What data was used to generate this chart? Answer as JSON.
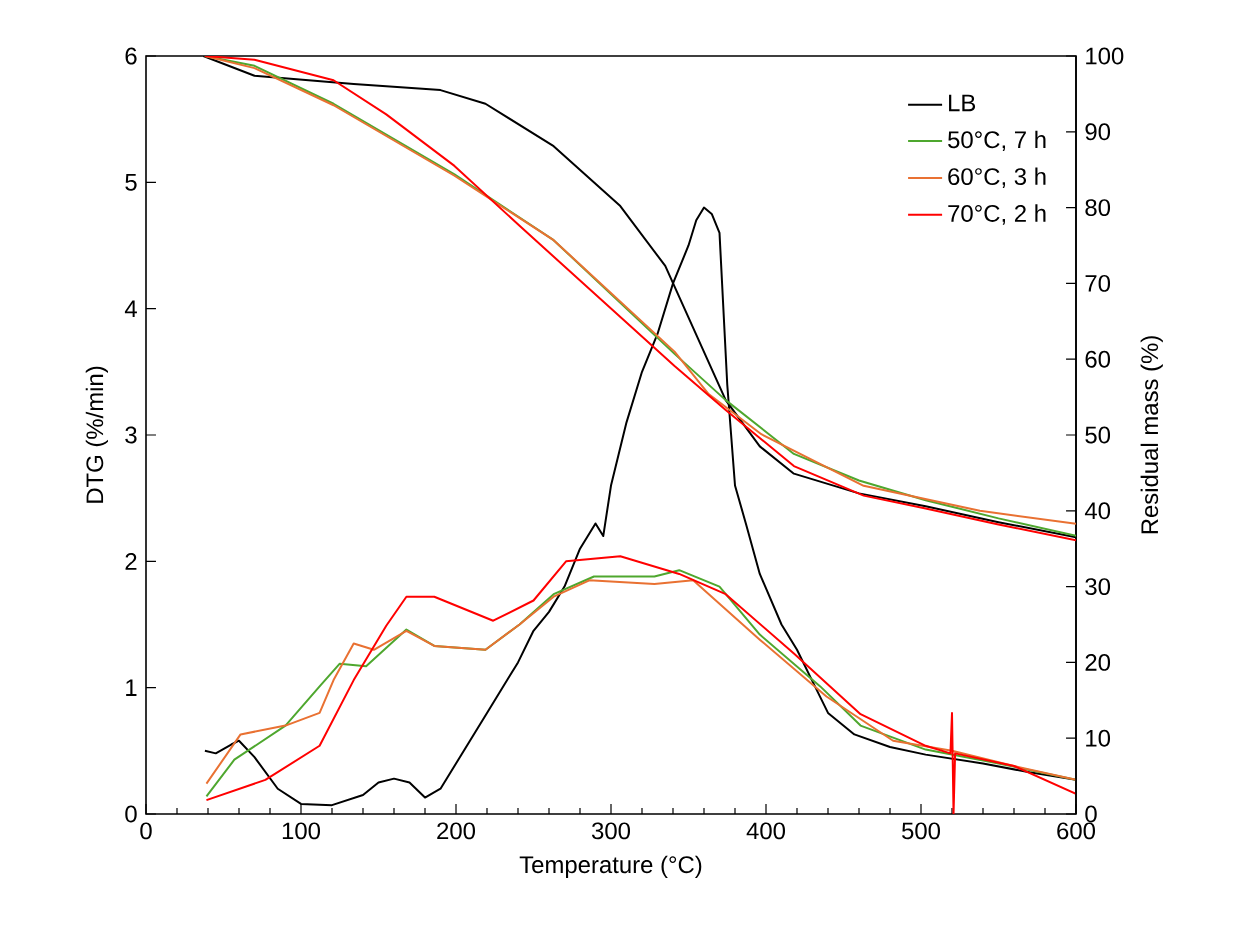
{
  "chart_data": {
    "type": "line",
    "xlabel": "Temperature (°C)",
    "ylabel": "DTG (%/min)",
    "y2label": "Residual mass (%)",
    "xlim": [
      0,
      600
    ],
    "xticks": [
      0,
      100,
      200,
      300,
      400,
      500,
      600
    ],
    "ylim": [
      0,
      6
    ],
    "yticks": [
      0,
      1,
      2,
      3,
      4,
      5,
      6
    ],
    "y2lim": [
      0,
      100
    ],
    "y2ticks": [
      0,
      10,
      20,
      30,
      40,
      50,
      60,
      70,
      80,
      90,
      100
    ],
    "legend": "top right",
    "grid": false,
    "marker": "none",
    "line_style": "solid",
    "series": [
      {
        "name": "LB",
        "color": "#000000",
        "x": [
          38,
          45,
          55,
          60,
          70,
          85,
          100,
          120,
          140,
          150,
          160,
          170,
          180,
          190,
          200,
          220,
          240,
          250,
          260,
          270,
          280,
          290,
          295,
          300,
          310,
          320,
          330,
          340,
          350,
          355,
          360,
          365,
          370,
          375,
          380,
          387,
          396,
          410,
          420,
          430,
          440,
          457,
          480,
          503,
          540,
          570,
          600
        ],
        "values": [
          0.5,
          0.48,
          0.55,
          0.58,
          0.45,
          0.2,
          0.08,
          0.07,
          0.15,
          0.25,
          0.28,
          0.25,
          0.13,
          0.2,
          0.4,
          0.8,
          1.2,
          1.45,
          1.6,
          1.8,
          2.1,
          2.3,
          2.2,
          2.6,
          3.1,
          3.5,
          3.8,
          4.2,
          4.5,
          4.7,
          4.8,
          4.75,
          4.6,
          3.4,
          2.6,
          2.3,
          1.9,
          1.5,
          1.3,
          1.05,
          0.8,
          0.63,
          0.53,
          0.47,
          0.4,
          0.33,
          0.27
        ]
      },
      {
        "name": "50°C, 7 h",
        "color": "#4ea72e",
        "x": [
          39,
          57,
          90,
          112,
          125,
          142,
          168,
          186,
          219,
          241,
          263,
          289,
          328,
          344,
          370,
          396,
          435,
          461,
          503,
          550,
          600
        ],
        "values": [
          0.14,
          0.43,
          0.7,
          1.01,
          1.19,
          1.17,
          1.46,
          1.33,
          1.3,
          1.5,
          1.74,
          1.88,
          1.88,
          1.93,
          1.8,
          1.42,
          1.01,
          0.7,
          0.51,
          0.4,
          0.27
        ]
      },
      {
        "name": "60°C, 3 h",
        "color": "#e97132",
        "x": [
          39,
          61,
          90,
          112,
          121,
          134,
          147,
          168,
          186,
          219,
          241,
          263,
          286,
          328,
          353,
          396,
          439,
          482,
          520,
          560,
          600
        ],
        "values": [
          0.24,
          0.63,
          0.7,
          0.8,
          1.06,
          1.35,
          1.3,
          1.45,
          1.33,
          1.3,
          1.5,
          1.72,
          1.85,
          1.82,
          1.85,
          1.38,
          0.93,
          0.58,
          0.5,
          0.38,
          0.27
        ]
      },
      {
        "name": "70°C, 2 h",
        "color": "#ff0000",
        "x": [
          39,
          77,
          112,
          134,
          155,
          168,
          186,
          224,
          250,
          271,
          306,
          344,
          374,
          418,
          461,
          503,
          519,
          520,
          521,
          522,
          560,
          600
        ],
        "values": [
          0.11,
          0.27,
          0.54,
          1.06,
          1.49,
          1.72,
          1.72,
          1.53,
          1.69,
          2.0,
          2.04,
          1.9,
          1.74,
          1.27,
          0.79,
          0.54,
          0.48,
          0.8,
          0,
          0.48,
          0.38,
          0.16
        ]
      },
      {
        "axis": "y2",
        "color": "#000000",
        "x": [
          37,
          70,
          134,
          190,
          219,
          263,
          306,
          335,
          374,
          396,
          418,
          460,
          503,
          550,
          600
        ],
        "values": [
          100,
          97.4,
          96.3,
          95.5,
          93.7,
          88.1,
          80.2,
          72.3,
          54.6,
          48.5,
          44.9,
          42.3,
          40.6,
          38.5,
          36.5
        ]
      },
      {
        "axis": "y2",
        "color": "#4ea72e",
        "x": [
          38,
          70,
          121,
          199,
          263,
          341,
          374,
          418,
          460,
          503,
          550,
          600
        ],
        "values": [
          100,
          98.7,
          93.7,
          84.4,
          75.7,
          60.7,
          54.6,
          47.5,
          44.0,
          41.4,
          39.0,
          36.7
        ]
      },
      {
        "axis": "y2",
        "color": "#e97132",
        "x": [
          38,
          70,
          121,
          199,
          263,
          341,
          363,
          397,
          463,
          538,
          600
        ],
        "values": [
          100,
          98.4,
          93.5,
          84.2,
          75.7,
          61.0,
          55.4,
          50.1,
          43.3,
          40.0,
          38.3
        ]
      },
      {
        "axis": "y2",
        "color": "#ff0000",
        "x": [
          38,
          70,
          121,
          155,
          199,
          241,
          341,
          374,
          418,
          463,
          503,
          550,
          600
        ],
        "values": [
          100,
          99.5,
          96.8,
          92.3,
          85.5,
          77.6,
          59.1,
          53.3,
          45.9,
          42.0,
          40.3,
          38.2,
          36.1
        ]
      }
    ]
  }
}
